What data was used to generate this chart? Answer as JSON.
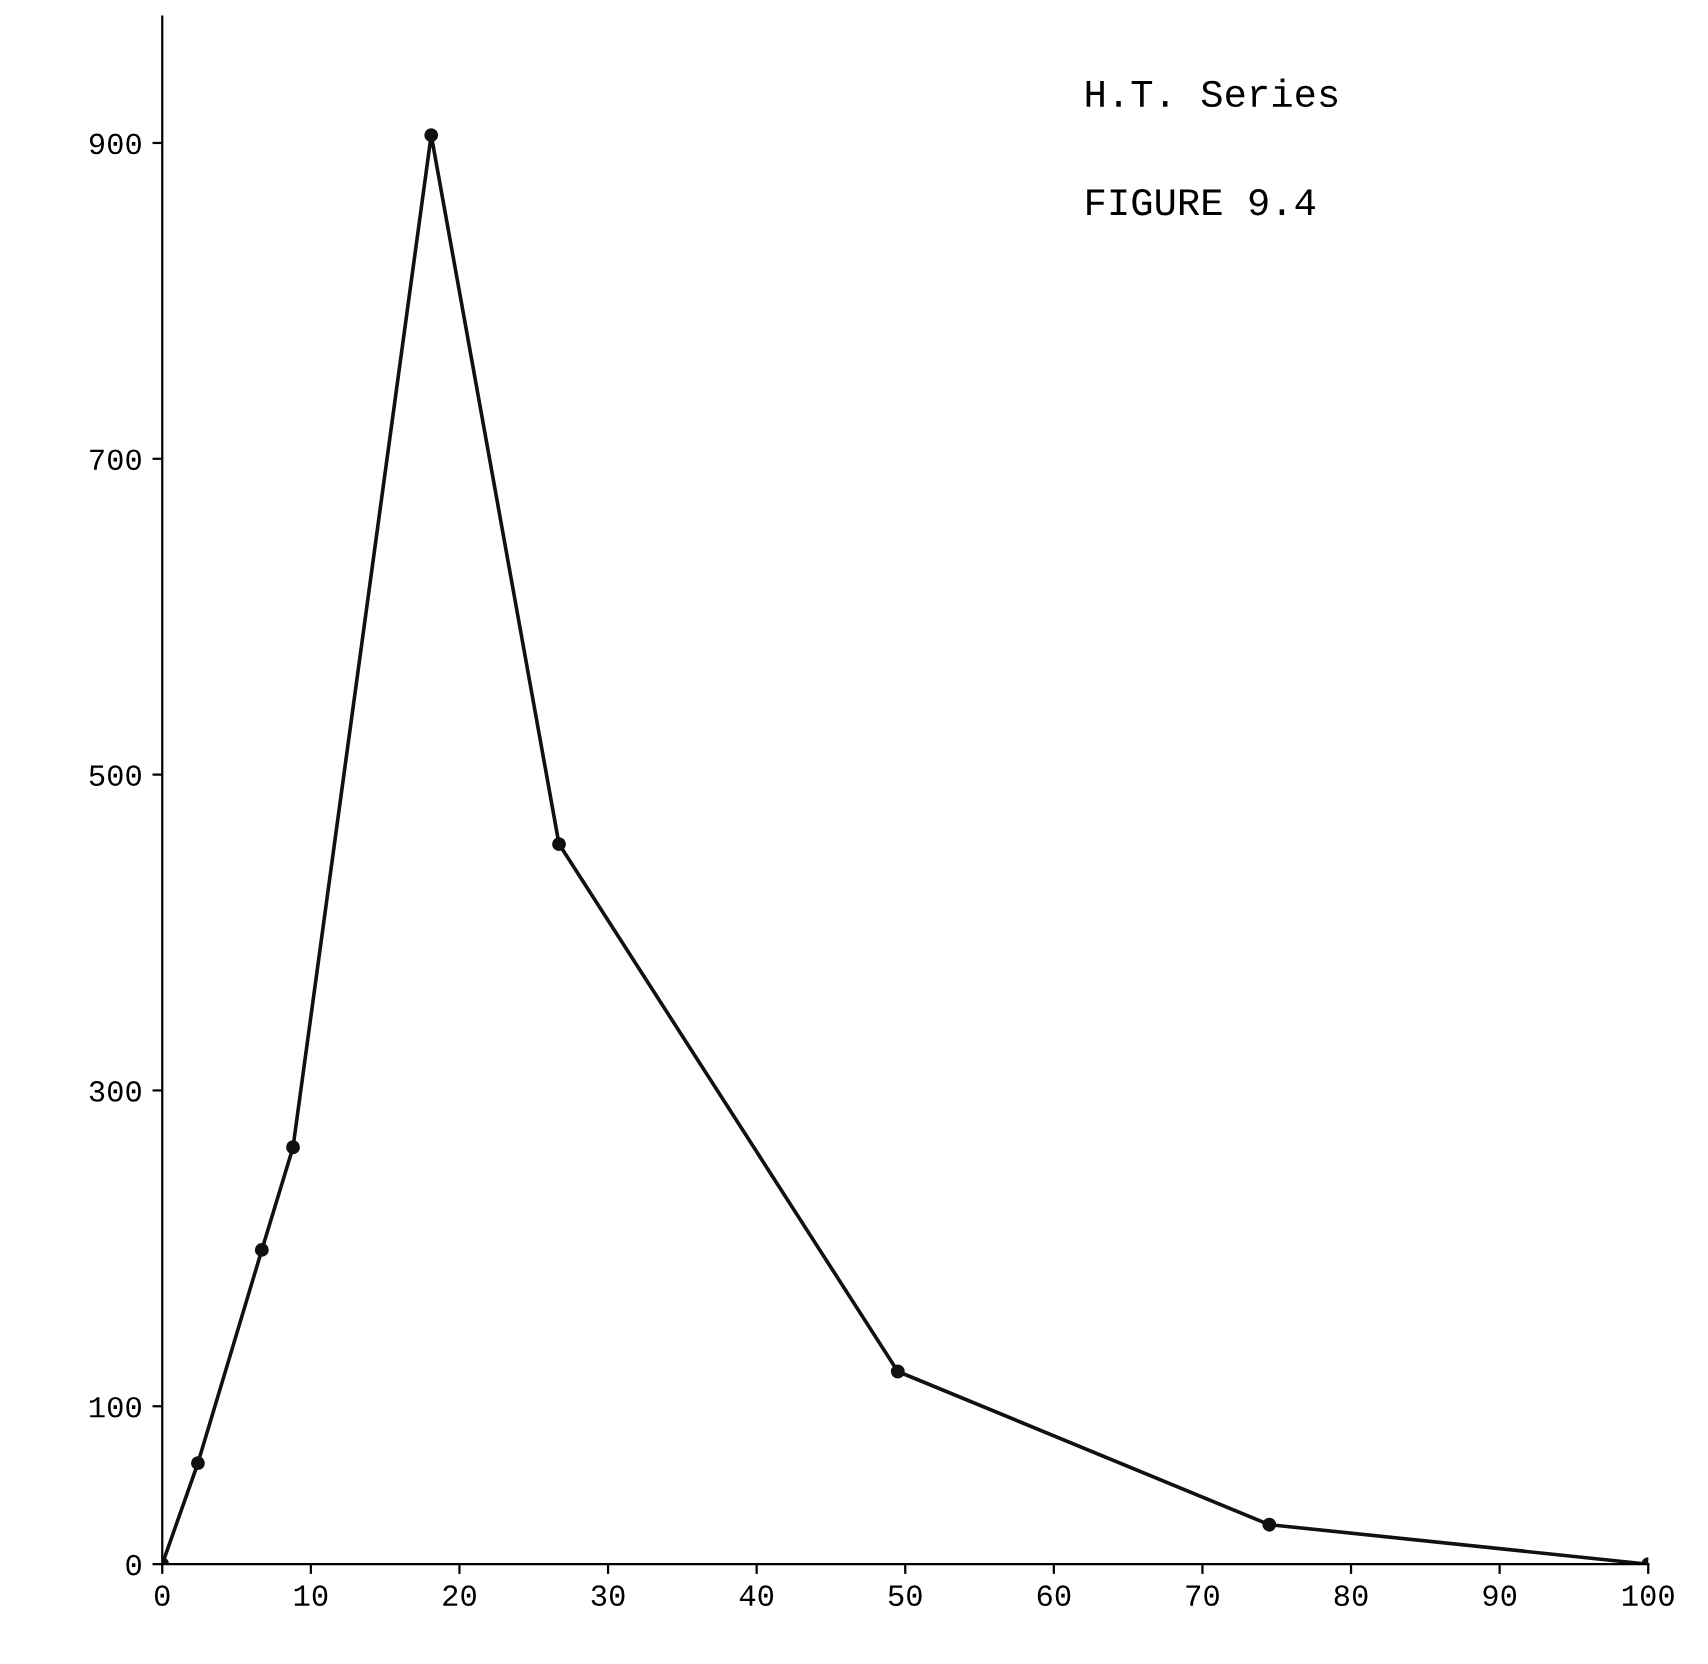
{
  "chart_data": {
    "type": "line",
    "title": "H.T. Series",
    "subtitle": "FIGURE 9.4",
    "x": [
      0,
      2.4,
      6.7,
      8.8,
      18.1,
      26.7,
      49.5,
      74.5,
      100
    ],
    "series": [
      {
        "color": "#111111",
        "values": [
          0,
          64,
          199,
          264,
          905,
          456,
          122,
          25,
          0
        ]
      }
    ],
    "xlim": [
      0,
      100
    ],
    "xticks": [
      0,
      10,
      20,
      30,
      40,
      50,
      60,
      70,
      80,
      90,
      100
    ],
    "ylim": [
      0,
      980
    ],
    "yticks": [
      0,
      100,
      300,
      500,
      700,
      900
    ],
    "grid": false,
    "marker": "circle",
    "line_style": "solid"
  }
}
